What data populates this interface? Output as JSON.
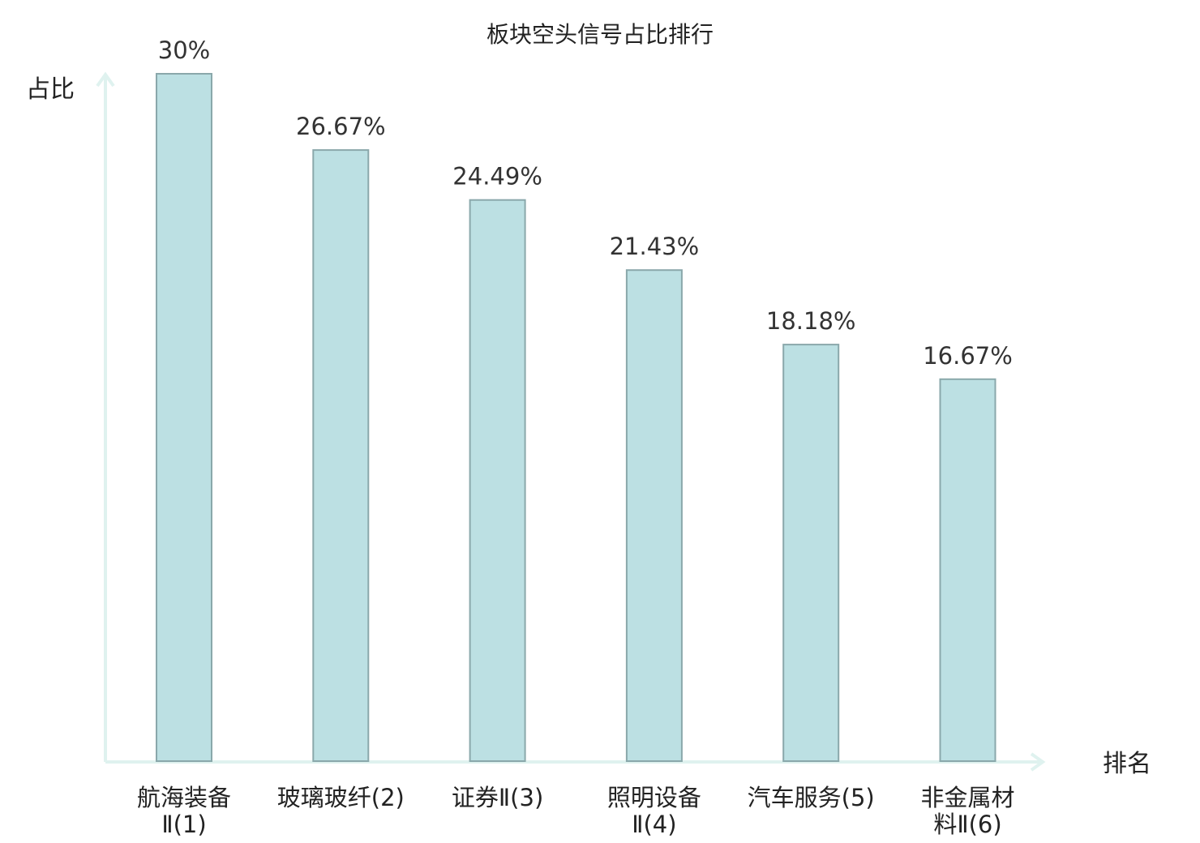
{
  "chart_data": {
    "type": "bar",
    "title": "板块空头信号占比排行",
    "ylabel": "占比",
    "xlabel": "排名",
    "ylim": [
      0,
      30
    ],
    "categories": [
      [
        "航海装备",
        "Ⅱ(1)"
      ],
      [
        "玻璃玻纤(2)"
      ],
      [
        "证券Ⅱ(3)"
      ],
      [
        "照明设备",
        "Ⅱ(4)"
      ],
      [
        "汽车服务(5)"
      ],
      [
        "非金属材",
        "料Ⅱ(6)"
      ]
    ],
    "values": [
      30,
      26.67,
      24.49,
      21.43,
      18.18,
      16.67
    ],
    "value_labels": [
      "30%",
      "26.67%",
      "24.49%",
      "21.43%",
      "18.18%",
      "16.67%"
    ],
    "highlight_index": 5,
    "colors": {
      "bar_fill": "#bce0e3",
      "bar_stroke": "#8aa8ab",
      "axis": "#dff2ef",
      "text": "#222222",
      "value_text": "#333333",
      "highlight": "#e0161b"
    },
    "grid": false
  }
}
